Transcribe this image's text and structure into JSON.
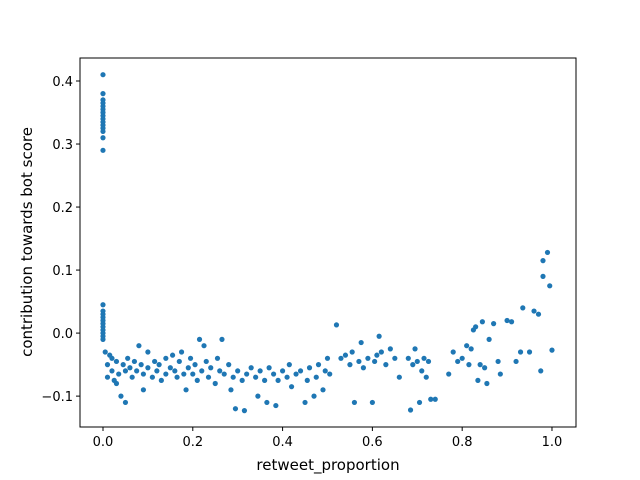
{
  "chart_data": {
    "type": "scatter",
    "xlabel": "retweet_proportion",
    "ylabel": "contribution towards bot score",
    "color": "#1f77b4",
    "xlim": [
      -0.0512,
      1.0535
    ],
    "ylim": [
      -0.149,
      0.4365
    ],
    "xticks": [
      {
        "value": 0,
        "label": "0.0"
      },
      0.2,
      0.4,
      0.6,
      0.8,
      {
        "value": 1,
        "label": "1.0"
      }
    ],
    "yticks": [
      {
        "value": -0.1,
        "label": "−0.1"
      },
      {
        "value": 0,
        "label": "0.0"
      },
      0.1,
      0.2,
      0.3,
      0.4
    ],
    "x": [
      0,
      0,
      0,
      0,
      0,
      0,
      0,
      0,
      0,
      0,
      0,
      0,
      0,
      0,
      0,
      0,
      0,
      0,
      0,
      0,
      0,
      0,
      0,
      0,
      0,
      0,
      0.005,
      0.01,
      0.01,
      0.015,
      0.02,
      0.02,
      0.025,
      0.03,
      0.03,
      0.035,
      0.04,
      0.045,
      0.05,
      0.05,
      0.055,
      0.06,
      0.065,
      0.07,
      0.075,
      0.08,
      0.085,
      0.09,
      0.09,
      0.1,
      0.1,
      0.11,
      0.115,
      0.12,
      0.125,
      0.13,
      0.14,
      0.14,
      0.15,
      0.155,
      0.16,
      0.165,
      0.17,
      0.175,
      0.18,
      0.185,
      0.19,
      0.195,
      0.2,
      0.205,
      0.21,
      0.215,
      0.22,
      0.225,
      0.23,
      0.235,
      0.24,
      0.25,
      0.255,
      0.26,
      0.265,
      0.27,
      0.28,
      0.285,
      0.29,
      0.295,
      0.3,
      0.31,
      0.315,
      0.32,
      0.33,
      0.34,
      0.345,
      0.35,
      0.36,
      0.365,
      0.37,
      0.38,
      0.385,
      0.39,
      0.4,
      0.41,
      0.415,
      0.42,
      0.43,
      0.44,
      0.45,
      0.455,
      0.46,
      0.47,
      0.475,
      0.48,
      0.49,
      0.495,
      0.5,
      0.505,
      0.52,
      0.53,
      0.54,
      0.55,
      0.555,
      0.56,
      0.57,
      0.575,
      0.58,
      0.59,
      0.6,
      0.605,
      0.61,
      0.615,
      0.62,
      0.63,
      0.64,
      0.65,
      0.66,
      0.68,
      0.685,
      0.69,
      0.695,
      0.7,
      0.705,
      0.71,
      0.715,
      0.72,
      0.725,
      0.73,
      0.74,
      0.77,
      0.78,
      0.79,
      0.8,
      0.81,
      0.815,
      0.82,
      0.825,
      0.83,
      0.835,
      0.84,
      0.845,
      0.85,
      0.855,
      0.86,
      0.87,
      0.88,
      0.885,
      0.9,
      0.91,
      0.92,
      0.93,
      0.935,
      0.95,
      0.96,
      0.97,
      0.975,
      0.98,
      0.98,
      0.99,
      0.995,
      1.0
    ],
    "values": [
      0.41,
      0.38,
      0.37,
      0.365,
      0.36,
      0.355,
      0.35,
      0.345,
      0.34,
      0.335,
      0.33,
      0.325,
      0.32,
      0.31,
      0.29,
      0.045,
      0.035,
      0.03,
      0.025,
      0.02,
      0.015,
      0.01,
      0.005,
      0,
      -0.005,
      -0.01,
      -0.03,
      -0.05,
      -0.07,
      -0.035,
      -0.04,
      -0.06,
      -0.075,
      -0.045,
      -0.08,
      -0.065,
      -0.1,
      -0.05,
      -0.11,
      -0.06,
      -0.04,
      -0.055,
      -0.07,
      -0.045,
      -0.06,
      -0.02,
      -0.05,
      -0.065,
      -0.09,
      -0.03,
      -0.055,
      -0.07,
      -0.045,
      -0.06,
      -0.05,
      -0.075,
      -0.04,
      -0.065,
      -0.055,
      -0.035,
      -0.06,
      -0.07,
      -0.045,
      -0.03,
      -0.065,
      -0.09,
      -0.055,
      -0.04,
      -0.065,
      -0.05,
      -0.075,
      -0.01,
      -0.06,
      -0.02,
      -0.045,
      -0.07,
      -0.055,
      -0.08,
      -0.04,
      -0.06,
      -0.01,
      -0.065,
      -0.05,
      -0.09,
      -0.07,
      -0.12,
      -0.06,
      -0.075,
      -0.123,
      -0.065,
      -0.055,
      -0.07,
      -0.1,
      -0.06,
      -0.075,
      -0.11,
      -0.055,
      -0.065,
      -0.115,
      -0.075,
      -0.06,
      -0.07,
      -0.05,
      -0.085,
      -0.065,
      -0.06,
      -0.11,
      -0.075,
      -0.055,
      -0.1,
      -0.07,
      -0.05,
      -0.09,
      -0.06,
      -0.04,
      -0.065,
      0.013,
      -0.04,
      -0.035,
      -0.05,
      -0.03,
      -0.11,
      -0.045,
      -0.015,
      -0.055,
      -0.04,
      -0.11,
      -0.045,
      -0.035,
      -0.005,
      -0.03,
      -0.05,
      -0.025,
      -0.04,
      -0.07,
      -0.04,
      -0.122,
      -0.05,
      -0.025,
      -0.045,
      -0.11,
      -0.06,
      -0.04,
      -0.07,
      -0.045,
      -0.105,
      -0.105,
      -0.065,
      -0.03,
      -0.045,
      -0.04,
      -0.02,
      -0.05,
      -0.025,
      0.005,
      0.01,
      -0.075,
      -0.05,
      0.018,
      -0.055,
      -0.08,
      -0.01,
      0.015,
      -0.045,
      -0.065,
      0.02,
      0.018,
      -0.045,
      -0.03,
      0.04,
      -0.03,
      0.035,
      0.03,
      -0.06,
      0.09,
      0.115,
      0.128,
      0.075,
      -0.027
    ]
  }
}
